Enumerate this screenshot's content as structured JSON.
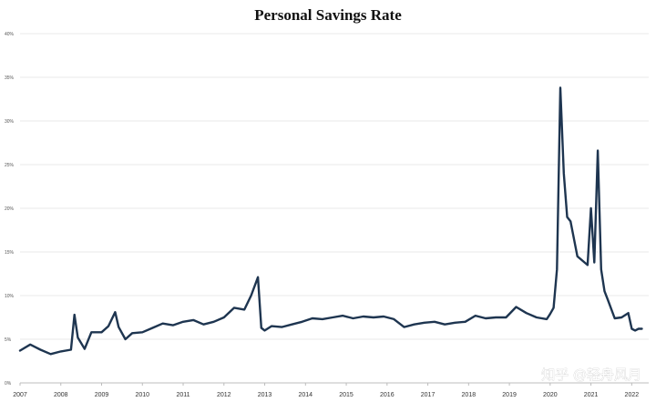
{
  "chart_data": {
    "type": "line",
    "title": "Personal Savings Rate",
    "xlabel": "",
    "ylabel": "",
    "ylim": [
      0,
      40
    ],
    "xlim": [
      "2007-01",
      "2022-06"
    ],
    "y_ticks": [
      "0%",
      "5%",
      "10%",
      "15%",
      "20%",
      "25%",
      "30%",
      "35%",
      "40%"
    ],
    "y_tick_values": [
      0,
      5,
      10,
      15,
      20,
      25,
      30,
      35,
      40
    ],
    "x_ticks": [
      "2007",
      "2008",
      "2009",
      "2010",
      "2011",
      "2012",
      "2013",
      "2014",
      "2015",
      "2016",
      "2017",
      "2018",
      "2019",
      "2020",
      "2021",
      "2022"
    ],
    "grid": true,
    "legend": "none",
    "series": [
      {
        "color": "#1e3550",
        "x": [
          "2007-01",
          "2007-04",
          "2007-07",
          "2007-10",
          "2008-01",
          "2008-04",
          "2008-05",
          "2008-06",
          "2008-08",
          "2008-10",
          "2009-01",
          "2009-03",
          "2009-05",
          "2009-06",
          "2009-08",
          "2009-10",
          "2010-01",
          "2010-04",
          "2010-07",
          "2010-10",
          "2011-01",
          "2011-04",
          "2011-07",
          "2011-10",
          "2012-01",
          "2012-04",
          "2012-07",
          "2012-09",
          "2012-11",
          "2012-12",
          "2013-01",
          "2013-03",
          "2013-06",
          "2013-09",
          "2013-12",
          "2014-03",
          "2014-06",
          "2014-09",
          "2014-12",
          "2015-03",
          "2015-06",
          "2015-09",
          "2015-12",
          "2016-03",
          "2016-06",
          "2016-09",
          "2016-12",
          "2017-03",
          "2017-06",
          "2017-09",
          "2017-12",
          "2018-03",
          "2018-06",
          "2018-09",
          "2018-12",
          "2019-03",
          "2019-06",
          "2019-09",
          "2019-12",
          "2020-01",
          "2020-02",
          "2020-03",
          "2020-04",
          "2020-05",
          "2020-06",
          "2020-07",
          "2020-09",
          "2020-12",
          "2021-01",
          "2021-02",
          "2021-03",
          "2021-04",
          "2021-05",
          "2021-06",
          "2021-08",
          "2021-10",
          "2021-12",
          "2022-01",
          "2022-02",
          "2022-03",
          "2022-04"
        ],
        "y": [
          3.7,
          4.4,
          3.8,
          3.3,
          3.6,
          3.8,
          7.8,
          5.2,
          3.9,
          5.8,
          5.8,
          6.5,
          8.1,
          6.4,
          5.0,
          5.7,
          5.8,
          6.3,
          6.8,
          6.6,
          7.0,
          7.2,
          6.7,
          7.0,
          7.5,
          8.6,
          8.4,
          10.0,
          12.1,
          6.3,
          6.0,
          6.5,
          6.4,
          6.7,
          7.0,
          7.4,
          7.3,
          7.5,
          7.7,
          7.4,
          7.6,
          7.5,
          7.6,
          7.3,
          6.4,
          6.7,
          6.9,
          7.0,
          6.7,
          6.9,
          7.0,
          7.7,
          7.4,
          7.5,
          7.5,
          8.7,
          8.0,
          7.5,
          7.3,
          7.9,
          8.6,
          13.0,
          33.8,
          24.0,
          19.0,
          18.5,
          14.5,
          13.5,
          20.0,
          13.8,
          26.6,
          13.0,
          10.5,
          9.5,
          7.4,
          7.5,
          8.0,
          6.2,
          6.0,
          6.2,
          6.2
        ]
      }
    ],
    "watermark": "知乎 @轻舟风月"
  }
}
